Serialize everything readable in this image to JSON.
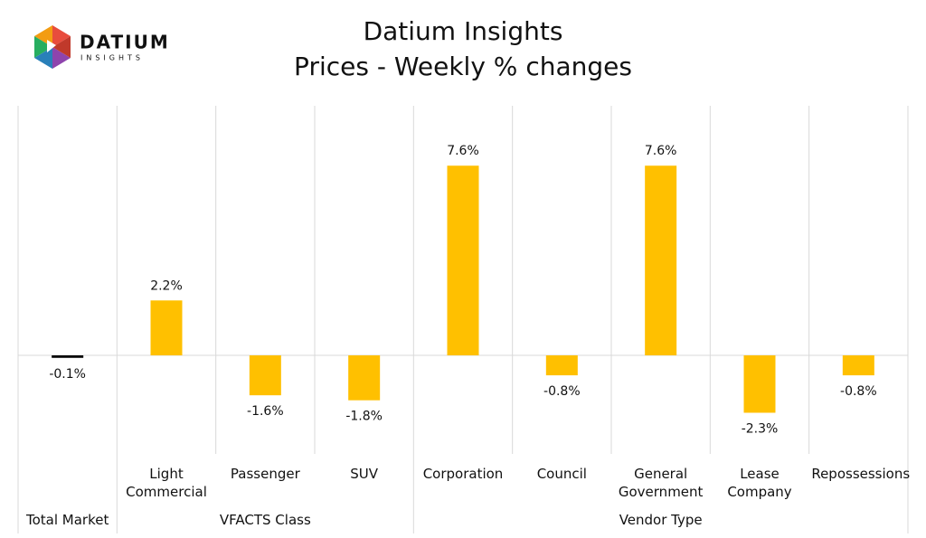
{
  "logo": {
    "name": "DATIUM",
    "tagline": "INSIGHTS"
  },
  "chart_data": {
    "type": "bar",
    "title": "Datium Insights",
    "subtitle": "Prices - Weekly % changes",
    "categories": [
      null,
      "Light Commercial",
      "Passenger",
      "SUV",
      "Corporation",
      "Council",
      "General Government",
      "Lease Company",
      "Repossessions"
    ],
    "groups": [
      {
        "name": "Total Market",
        "size": 1
      },
      {
        "name": "VFACTS Class",
        "size": 3
      },
      {
        "name": "Vendor Type",
        "size": 5
      }
    ],
    "values": [
      -0.1,
      2.2,
      -1.6,
      -1.8,
      7.6,
      -0.8,
      7.6,
      -2.3,
      -0.8
    ],
    "value_labels": [
      "-0.1%",
      "2.2%",
      "-1.6%",
      "-1.8%",
      "7.6%",
      "-0.8%",
      "7.6%",
      "-2.3%",
      "-0.8%"
    ],
    "colors": [
      "#000000",
      "#FFC000",
      "#FFC000",
      "#FFC000",
      "#FFC000",
      "#FFC000",
      "#FFC000",
      "#FFC000",
      "#FFC000"
    ]
  }
}
